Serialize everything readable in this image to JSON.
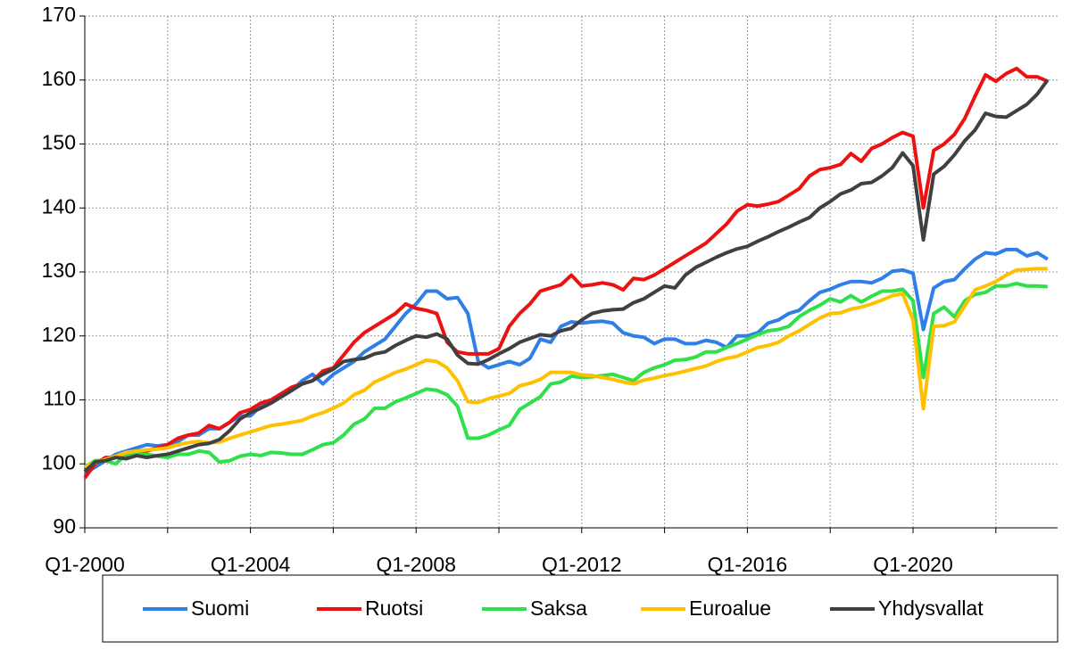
{
  "chart_data": {
    "type": "line",
    "categories": [
      "Q1-2000",
      null,
      null,
      null,
      null,
      null,
      null,
      null,
      null,
      null,
      null,
      null,
      null,
      null,
      null,
      null,
      "Q1-2004",
      null,
      null,
      null,
      null,
      null,
      null,
      null,
      null,
      null,
      null,
      null,
      null,
      null,
      null,
      null,
      "Q1-2008",
      null,
      null,
      null,
      null,
      null,
      null,
      null,
      null,
      null,
      null,
      null,
      null,
      null,
      null,
      null,
      "Q1-2012",
      null,
      null,
      null,
      null,
      null,
      null,
      null,
      null,
      null,
      null,
      null,
      null,
      null,
      null,
      null,
      "Q1-2016",
      null,
      null,
      null,
      null,
      null,
      null,
      null,
      null,
      null,
      null,
      null,
      null,
      null,
      null,
      null,
      "Q1-2020",
      null,
      null,
      null,
      null,
      null,
      null,
      null,
      null,
      null,
      null,
      null,
      null,
      null
    ],
    "series": [
      {
        "name": "Suomi",
        "color": "#2f7fe8",
        "values": [
          98.5,
          99.5,
          100.5,
          101.5,
          102,
          102.5,
          103,
          102.8,
          103,
          103.5,
          104.5,
          104.5,
          105.5,
          105.5,
          106.5,
          107.5,
          107.5,
          109,
          110,
          110.5,
          111.5,
          113,
          114,
          112.5,
          114,
          115,
          116,
          117.5,
          118.5,
          119.5,
          121.5,
          123.5,
          125,
          127,
          127,
          125.8,
          126,
          123.5,
          116,
          115,
          115.5,
          116,
          115.5,
          116.5,
          119.5,
          119,
          121.5,
          122.2,
          122,
          122.2,
          122.3,
          122,
          120.5,
          120,
          119.8,
          118.8,
          119.5,
          119.5,
          118.8,
          118.8,
          119.3,
          119,
          118.2,
          120,
          120,
          120.5,
          122,
          122.5,
          123.5,
          124,
          125.5,
          126.8,
          127.3,
          128,
          128.5,
          128.5,
          128.3,
          129,
          130.1,
          130.3,
          129.8,
          121,
          127.5,
          128.5,
          128.8,
          130.5,
          132,
          133,
          132.8,
          133.5,
          133.5,
          132.5,
          133,
          132
        ]
      },
      {
        "name": "Ruotsi",
        "color": "#ee1111",
        "values": [
          97.8,
          100,
          101,
          101,
          101.2,
          101.5,
          102,
          102.5,
          103,
          104,
          104.5,
          104.8,
          106,
          105.5,
          106.5,
          108,
          108.5,
          109.5,
          110,
          111,
          112,
          112.5,
          113,
          114.5,
          115,
          117,
          119,
          120.5,
          121.5,
          122.5,
          123.5,
          125,
          124.3,
          124,
          123.5,
          119,
          117.5,
          117.2,
          117.2,
          117.2,
          118,
          121.5,
          123.5,
          125,
          127,
          127.5,
          128,
          129.5,
          127.8,
          128,
          128.3,
          128,
          127.2,
          129,
          128.8,
          129.5,
          130.5,
          131.5,
          132.5,
          133.5,
          134.5,
          136,
          137.5,
          139.5,
          140.5,
          140.3,
          140.6,
          141,
          142,
          143,
          145,
          146,
          146.3,
          146.8,
          148.5,
          147.3,
          149.3,
          150,
          151,
          151.8,
          151.2,
          140,
          149,
          150,
          151.5,
          154,
          157.5,
          160.8,
          159.8,
          161,
          161.8,
          160.5,
          160.5,
          159.8
        ]
      },
      {
        "name": "Saksa",
        "color": "#2ee04a",
        "values": [
          99.5,
          100.5,
          100.5,
          100,
          101.5,
          101.5,
          101.5,
          101.2,
          101,
          101.5,
          101.5,
          102,
          101.8,
          100.3,
          100.5,
          101.2,
          101.5,
          101.3,
          101.8,
          101.7,
          101.5,
          101.5,
          102.2,
          103,
          103.3,
          104.5,
          106.2,
          107,
          108.7,
          108.7,
          109.7,
          110.3,
          111,
          111.7,
          111.5,
          110.8,
          109,
          104,
          104,
          104.5,
          105.3,
          106,
          108.5,
          109.5,
          110.5,
          112.5,
          112.8,
          113.7,
          113.5,
          113.6,
          113.8,
          114,
          113.5,
          113,
          114.3,
          115,
          115.5,
          116.2,
          116.3,
          116.7,
          117.5,
          117.5,
          118.2,
          118.8,
          119.5,
          120.2,
          120.8,
          121,
          121.5,
          123,
          124,
          124.8,
          125.8,
          125.3,
          126.3,
          125.3,
          126.2,
          127,
          127,
          127.3,
          125.5,
          113.5,
          123.5,
          124.5,
          123,
          125.5,
          126.5,
          126.8,
          127.8,
          127.8,
          128.2,
          127.8,
          127.8,
          127.7
        ]
      },
      {
        "name": "Euroalue",
        "color": "#ffc000",
        "values": [
          99.5,
          100.2,
          100.7,
          101.2,
          101.8,
          102,
          102.2,
          102.3,
          102.5,
          103,
          103.3,
          103.5,
          103.3,
          103.4,
          104,
          104.5,
          105,
          105.5,
          106,
          106.2,
          106.5,
          106.8,
          107.5,
          108,
          108.7,
          109.5,
          110.8,
          111.5,
          112.8,
          113.5,
          114.3,
          114.8,
          115.5,
          116.2,
          116,
          115,
          113,
          109.7,
          109.6,
          110.2,
          110.6,
          111,
          112.2,
          112.6,
          113.2,
          114.3,
          114.3,
          114.3,
          113.9,
          113.8,
          113.5,
          113.2,
          112.8,
          112.5,
          113.1,
          113.4,
          113.8,
          114.1,
          114.5,
          114.9,
          115.3,
          116,
          116.5,
          116.8,
          117.5,
          118.2,
          118.5,
          119,
          120,
          120.8,
          121.8,
          122.8,
          123.5,
          123.6,
          124.2,
          124.5,
          125,
          125.6,
          126.3,
          126.6,
          122.5,
          108.6,
          121.5,
          121.6,
          122.2,
          124.7,
          127.2,
          127.8,
          128.5,
          129.5,
          130.3,
          130.4,
          130.5,
          130.5
        ]
      },
      {
        "name": "Yhdysvallat",
        "color": "#404040",
        "values": [
          98.8,
          100.3,
          100.5,
          101,
          100.8,
          101.3,
          101,
          101.3,
          101.5,
          102,
          102.5,
          103,
          103.2,
          103.8,
          105.2,
          107,
          108,
          108.7,
          109.5,
          110.5,
          111.5,
          112.5,
          113,
          114,
          114.8,
          116,
          116.3,
          116.5,
          117.2,
          117.5,
          118.5,
          119.3,
          120,
          119.8,
          120.3,
          119.5,
          117,
          115.7,
          115.6,
          116.3,
          117.2,
          118,
          119,
          119.6,
          120.2,
          120,
          120.8,
          121.2,
          122.5,
          123.5,
          123.9,
          124.1,
          124.2,
          125.2,
          125.8,
          126.8,
          127.8,
          127.5,
          129.5,
          130.7,
          131.5,
          132.3,
          133,
          133.6,
          134,
          134.8,
          135.5,
          136.3,
          137,
          137.8,
          138.5,
          140,
          141,
          142.2,
          142.8,
          143.8,
          144,
          145,
          146.3,
          148.6,
          146.6,
          135,
          145.3,
          146.5,
          148.3,
          150.5,
          152.2,
          154.8,
          154.3,
          154.2,
          155.2,
          156.2,
          157.8,
          160
        ]
      }
    ],
    "ylim": [
      90,
      170
    ],
    "yticks": [
      90,
      100,
      110,
      120,
      130,
      140,
      150,
      160,
      170
    ],
    "grid": true
  }
}
